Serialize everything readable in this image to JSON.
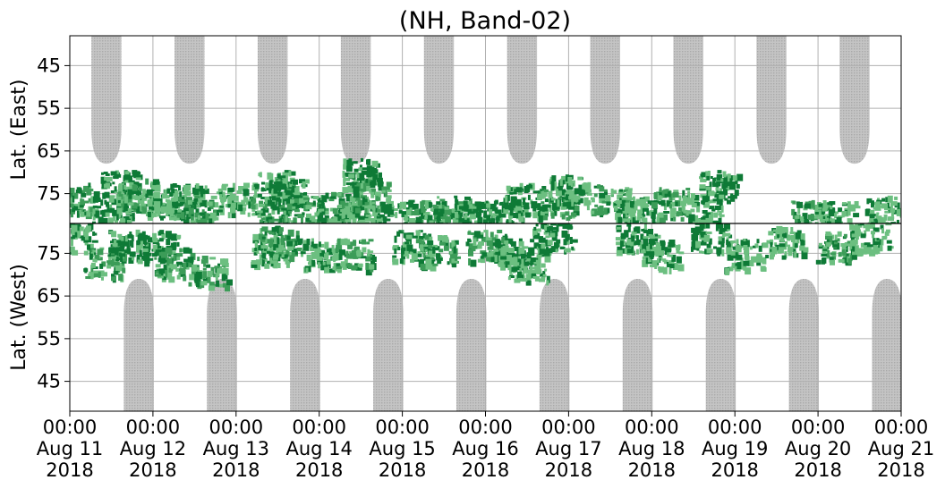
{
  "chart_data": {
    "type": "heatmap",
    "title": "(NH, Band-02)",
    "upper_panel": {
      "ylabel": "Lat. (East)",
      "yticks": [
        "45",
        "55",
        "65",
        "75"
      ],
      "ylim": [
        38,
        82
      ]
    },
    "lower_panel": {
      "ylabel": "Lat. (West)",
      "yticks": [
        "75",
        "65",
        "55",
        "45"
      ],
      "ylim": [
        82,
        38
      ]
    },
    "xtick_labels": [
      [
        "00:00",
        "Aug 11",
        "2018"
      ],
      [
        "00:00",
        "Aug 12",
        "2018"
      ],
      [
        "00:00",
        "Aug 13",
        "2018"
      ],
      [
        "00:00",
        "Aug 14",
        "2018"
      ],
      [
        "00:00",
        "Aug 15",
        "2018"
      ],
      [
        "00:00",
        "Aug 16",
        "2018"
      ],
      [
        "00:00",
        "Aug 17",
        "2018"
      ],
      [
        "00:00",
        "Aug 18",
        "2018"
      ],
      [
        "00:00",
        "Aug 19",
        "2018"
      ],
      [
        "00:00",
        "Aug 20",
        "2018"
      ],
      [
        "00:00",
        "Aug 21",
        "2018"
      ]
    ],
    "xlim_days": [
      0,
      10
    ],
    "grid": true,
    "colors": {
      "no_data": "#bdbdbd",
      "strong": "#0e7a36",
      "moderate": "#3c9c58",
      "weak": "#6cbf80",
      "grid": "#b0b0b0"
    },
    "no_data_regions": {
      "upper": [
        {
          "center_day": 0.44,
          "half_width_days": 0.18,
          "min_lat": 68
        },
        {
          "center_day": 1.44,
          "half_width_days": 0.18,
          "min_lat": 68
        },
        {
          "center_day": 2.44,
          "half_width_days": 0.18,
          "min_lat": 68
        },
        {
          "center_day": 3.44,
          "half_width_days": 0.18,
          "min_lat": 68
        },
        {
          "center_day": 4.44,
          "half_width_days": 0.18,
          "min_lat": 68
        },
        {
          "center_day": 5.44,
          "half_width_days": 0.18,
          "min_lat": 68
        },
        {
          "center_day": 6.44,
          "half_width_days": 0.18,
          "min_lat": 68
        },
        {
          "center_day": 7.44,
          "half_width_days": 0.18,
          "min_lat": 68
        },
        {
          "center_day": 8.44,
          "half_width_days": 0.18,
          "min_lat": 68
        },
        {
          "center_day": 9.44,
          "half_width_days": 0.18,
          "min_lat": 68
        }
      ],
      "lower": [
        {
          "center_day": 0.83,
          "half_width_days": 0.18,
          "min_lat": 69
        },
        {
          "center_day": 1.83,
          "half_width_days": 0.18,
          "min_lat": 69
        },
        {
          "center_day": 2.83,
          "half_width_days": 0.18,
          "min_lat": 69
        },
        {
          "center_day": 3.83,
          "half_width_days": 0.18,
          "min_lat": 69
        },
        {
          "center_day": 4.83,
          "half_width_days": 0.18,
          "min_lat": 69
        },
        {
          "center_day": 5.83,
          "half_width_days": 0.18,
          "min_lat": 69
        },
        {
          "center_day": 6.83,
          "half_width_days": 0.18,
          "min_lat": 69
        },
        {
          "center_day": 7.83,
          "half_width_days": 0.18,
          "min_lat": 69
        },
        {
          "center_day": 8.83,
          "half_width_days": 0.18,
          "min_lat": 69
        },
        {
          "center_day": 9.83,
          "half_width_days": 0.18,
          "min_lat": 69
        }
      ]
    },
    "activity_clusters": {
      "upper": [
        {
          "day": 0.02,
          "lat": 76,
          "level": "moderate"
        },
        {
          "day": 0.5,
          "lat": 78,
          "level": "strong"
        },
        {
          "day": 0.6,
          "lat": 73,
          "level": "strong"
        },
        {
          "day": 0.8,
          "lat": 75,
          "level": "moderate"
        },
        {
          "day": 1.1,
          "lat": 77,
          "level": "weak"
        },
        {
          "day": 1.4,
          "lat": 76,
          "level": "strong"
        },
        {
          "day": 1.5,
          "lat": 79,
          "level": "moderate"
        },
        {
          "day": 2.0,
          "lat": 76,
          "level": "weak"
        },
        {
          "day": 2.4,
          "lat": 79,
          "level": "moderate"
        },
        {
          "day": 2.45,
          "lat": 73,
          "level": "strong"
        },
        {
          "day": 2.6,
          "lat": 75,
          "level": "strong"
        },
        {
          "day": 2.8,
          "lat": 79,
          "level": "moderate"
        },
        {
          "day": 3.2,
          "lat": 78,
          "level": "moderate"
        },
        {
          "day": 3.5,
          "lat": 80,
          "level": "weak"
        },
        {
          "day": 3.5,
          "lat": 70,
          "level": "strong"
        },
        {
          "day": 3.6,
          "lat": 75,
          "level": "moderate"
        },
        {
          "day": 3.9,
          "lat": 80,
          "level": "strong"
        },
        {
          "day": 4.3,
          "lat": 80,
          "level": "moderate"
        },
        {
          "day": 4.6,
          "lat": 79,
          "level": "moderate"
        },
        {
          "day": 4.9,
          "lat": 80,
          "level": "strong"
        },
        {
          "day": 5.2,
          "lat": 80,
          "level": "strong"
        },
        {
          "day": 5.45,
          "lat": 76,
          "level": "strong"
        },
        {
          "day": 5.85,
          "lat": 77,
          "level": "moderate"
        },
        {
          "day": 6.0,
          "lat": 74,
          "level": "weak"
        },
        {
          "day": 6.5,
          "lat": 76,
          "level": "moderate"
        },
        {
          "day": 6.8,
          "lat": 79,
          "level": "weak"
        },
        {
          "day": 7.2,
          "lat": 77,
          "level": "moderate"
        },
        {
          "day": 7.6,
          "lat": 78,
          "level": "weak"
        },
        {
          "day": 7.8,
          "lat": 73,
          "level": "strong"
        },
        {
          "day": 8.9,
          "lat": 80,
          "level": "moderate"
        },
        {
          "day": 9.2,
          "lat": 80,
          "level": "weak"
        },
        {
          "day": 9.8,
          "lat": 79,
          "level": "weak"
        }
      ],
      "lower": [
        {
          "day": 0.05,
          "lat": 79,
          "level": "strong"
        },
        {
          "day": 0.4,
          "lat": 73,
          "level": "moderate"
        },
        {
          "day": 0.7,
          "lat": 77,
          "level": "strong"
        },
        {
          "day": 1.05,
          "lat": 77,
          "level": "strong"
        },
        {
          "day": 1.25,
          "lat": 73,
          "level": "moderate"
        },
        {
          "day": 1.65,
          "lat": 71,
          "level": "moderate"
        },
        {
          "day": 2.4,
          "lat": 76,
          "level": "weak"
        },
        {
          "day": 2.5,
          "lat": 78,
          "level": "moderate"
        },
        {
          "day": 3.0,
          "lat": 75,
          "level": "weak"
        },
        {
          "day": 3.4,
          "lat": 75,
          "level": "moderate"
        },
        {
          "day": 4.1,
          "lat": 77,
          "level": "strong"
        },
        {
          "day": 4.4,
          "lat": 76,
          "level": "moderate"
        },
        {
          "day": 5.0,
          "lat": 77,
          "level": "moderate"
        },
        {
          "day": 5.3,
          "lat": 75,
          "level": "strong"
        },
        {
          "day": 5.5,
          "lat": 72,
          "level": "weak"
        },
        {
          "day": 5.8,
          "lat": 79,
          "level": "strong"
        },
        {
          "day": 6.8,
          "lat": 79,
          "level": "strong"
        },
        {
          "day": 7.1,
          "lat": 75,
          "level": "weak"
        },
        {
          "day": 7.7,
          "lat": 79,
          "level": "strong"
        },
        {
          "day": 8.1,
          "lat": 75,
          "level": "weak"
        },
        {
          "day": 8.6,
          "lat": 78,
          "level": "weak"
        },
        {
          "day": 9.2,
          "lat": 77,
          "level": "moderate"
        },
        {
          "day": 9.6,
          "lat": 79,
          "level": "weak"
        }
      ]
    }
  }
}
